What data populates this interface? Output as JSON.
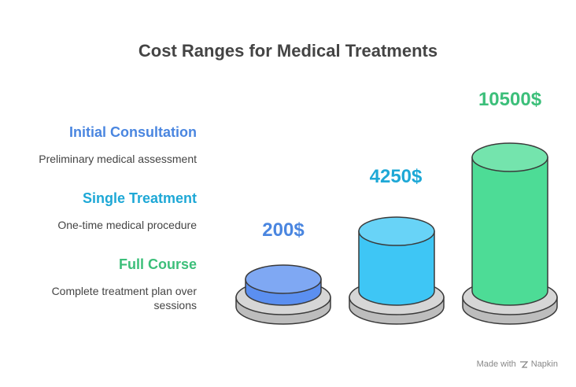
{
  "title": "Cost Ranges for Medical Treatments",
  "legend": [
    {
      "title": "Initial Consultation",
      "desc": "Preliminary medical assessment",
      "color": "#4a86e0"
    },
    {
      "title": "Single Treatment",
      "desc": "One-time medical procedure",
      "color": "#1ea8d6"
    },
    {
      "title": "Full Course",
      "desc": "Complete treatment plan over sessions",
      "color": "#3cbf7a"
    }
  ],
  "chart_data": {
    "type": "bar",
    "categories": [
      "Initial Consultation",
      "Single Treatment",
      "Full Course"
    ],
    "values": [
      200,
      4250,
      10500
    ],
    "value_labels": [
      "200$",
      "4250$",
      "10500$"
    ],
    "colors": [
      "#5b8ff0",
      "#3ec6f5",
      "#4ddc96"
    ],
    "label_colors": [
      "#4a86e0",
      "#1ea8d6",
      "#3cbf7a"
    ]
  },
  "footer": {
    "made_with": "Made with",
    "brand": "Napkin"
  }
}
